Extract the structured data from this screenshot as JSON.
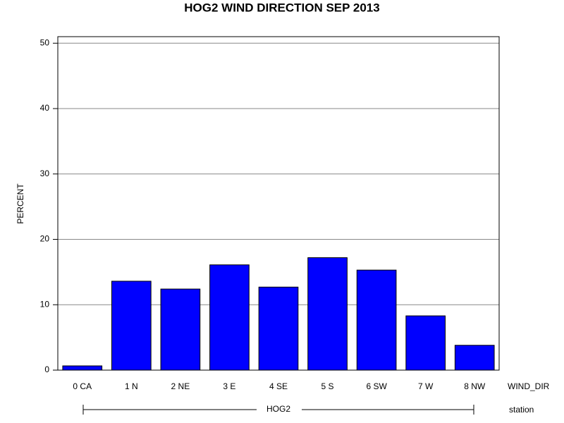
{
  "chart_data": {
    "type": "bar",
    "title": "HOG2 WIND DIRECTION SEP 2013",
    "y_label": "PERCENT",
    "x_label": "WIND_DIR",
    "group_axis_label": "station",
    "group_label": "HOG2",
    "categories": [
      "0 CA",
      "1 N",
      "2 NE",
      "3 E",
      "4 SE",
      "5 S",
      "6 SW",
      "7 W",
      "8 NW"
    ],
    "values": [
      0.65,
      13.6,
      12.4,
      16.1,
      12.7,
      17.2,
      15.3,
      8.3,
      3.8
    ],
    "color": "#0000ff",
    "ylim": [
      0,
      51
    ],
    "yticks": [
      0,
      10,
      20,
      30,
      40,
      50
    ],
    "grid": true
  }
}
